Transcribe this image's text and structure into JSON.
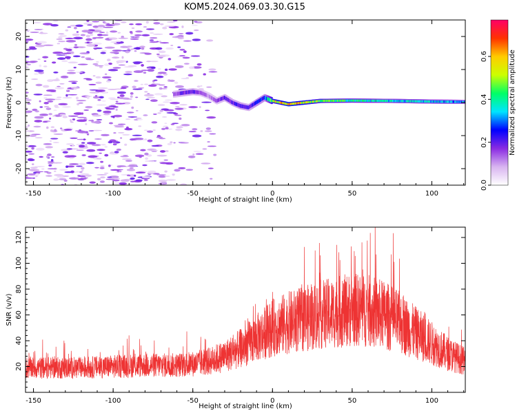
{
  "title": "KOM5.2024.069.03.30.G15",
  "chart_data": [
    {
      "type": "heatmap",
      "xlabel": "Height of straight line (km)",
      "ylabel": "Frequency (Hz)",
      "xlim": [
        -155,
        121
      ],
      "ylim": [
        -25,
        25
      ],
      "xticks": [
        -150,
        -100,
        -50,
        0,
        50,
        100
      ],
      "xtick_labels": [
        "-150",
        "-100",
        "-50",
        "0",
        "50",
        "100"
      ],
      "yticks": [
        -20,
        -10,
        0,
        10,
        20
      ],
      "ytick_labels": [
        "-20",
        "-10",
        "0",
        "10",
        "20"
      ],
      "colorbar": {
        "label": "Normalized spectral amplitude",
        "range": [
          0,
          0.77
        ],
        "ticks": [
          0.0,
          0.2,
          0.4,
          0.6
        ],
        "tick_labels": [
          "0.0",
          "0.2",
          "0.4",
          "0.6"
        ],
        "colors": [
          "#ffffff",
          "#d8b4f0",
          "#8a2be2",
          "#0000ff",
          "#00e5ff",
          "#00ff66",
          "#ccff00",
          "#ffcc00",
          "#ff3300",
          "#ff0066"
        ]
      },
      "noise_region": {
        "x": [
          -155,
          -35
        ],
        "y": [
          -25,
          25
        ],
        "amplitude": 0.1
      },
      "ridge": {
        "x": [
          -62,
          -55,
          -50,
          -45,
          -40,
          -35,
          -30,
          -25,
          -20,
          -15,
          -10,
          -5,
          0,
          10,
          20,
          30,
          50,
          75,
          100,
          121
        ],
        "y": [
          2.5,
          3.0,
          3.3,
          3.0,
          2.0,
          0.5,
          1.5,
          0.0,
          -1.0,
          -1.5,
          0.0,
          1.5,
          0.5,
          -0.5,
          0.0,
          0.5,
          0.6,
          0.5,
          0.3,
          0.2
        ],
        "amplitude": [
          0.15,
          0.2,
          0.2,
          0.15,
          0.12,
          0.15,
          0.2,
          0.2,
          0.22,
          0.2,
          0.25,
          0.25,
          0.5,
          0.6,
          0.55,
          0.45,
          0.4,
          0.35,
          0.35,
          0.3
        ]
      }
    },
    {
      "type": "line",
      "xlabel": "Height of straight line (km)",
      "ylabel": "SNR (v/v)",
      "xlim": [
        -155,
        121
      ],
      "ylim": [
        0,
        128
      ],
      "xticks": [
        -150,
        -100,
        -50,
        0,
        50,
        100
      ],
      "xtick_labels": [
        "-150",
        "-100",
        "-50",
        "0",
        "50",
        "100"
      ],
      "yticks": [
        20,
        40,
        60,
        80,
        100,
        120
      ],
      "ytick_labels": [
        "20",
        "40",
        "60",
        "80",
        "100",
        "120"
      ],
      "color": "#ee3333",
      "series": [
        {
          "x": [
            -155,
            -140,
            -120,
            -100,
            -80,
            -60,
            -50,
            -40,
            -30,
            -20,
            -10,
            0,
            10,
            20,
            30,
            40,
            50,
            60,
            70,
            80,
            90,
            100,
            110,
            121
          ],
          "y": [
            19,
            19,
            19,
            20,
            21,
            21,
            22,
            24,
            28,
            34,
            42,
            50,
            54,
            57,
            60,
            62,
            64,
            63,
            60,
            54,
            46,
            38,
            30,
            24
          ]
        }
      ]
    }
  ]
}
